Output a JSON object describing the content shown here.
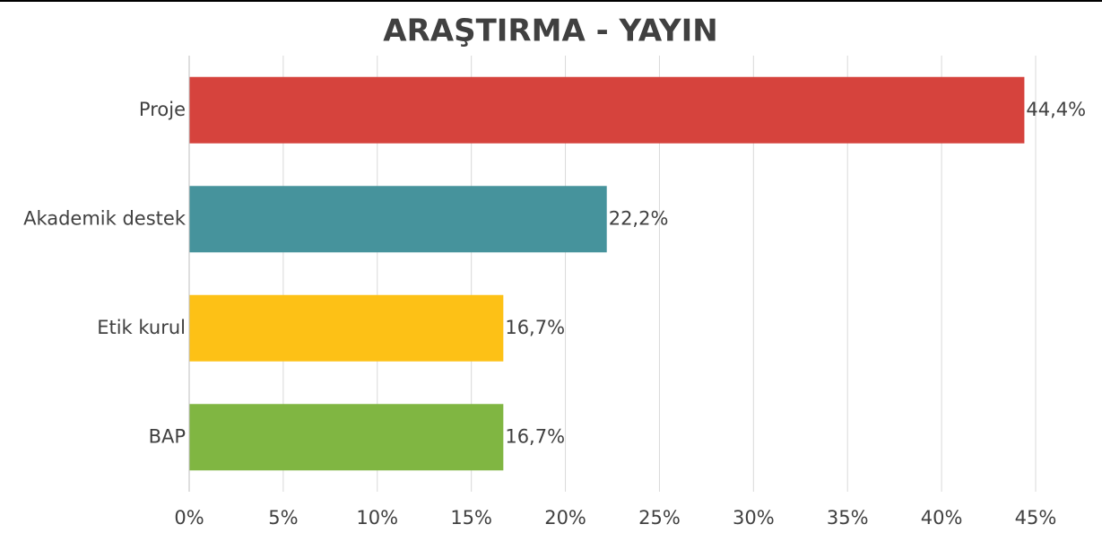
{
  "chart_data": {
    "type": "bar",
    "orientation": "horizontal",
    "title": "ARAŞTIRMA - YAYIN",
    "categories": [
      "Proje",
      "Akademik destek",
      "Etik kurul",
      "BAP"
    ],
    "values": [
      44.4,
      22.2,
      16.7,
      16.7
    ],
    "value_labels": [
      "44,4%",
      "22,2%",
      "16,7%",
      "16,7%"
    ],
    "colors": [
      "#d6433d",
      "#46939c",
      "#fdc116",
      "#80b642"
    ],
    "xlim": [
      0,
      45
    ],
    "xticks": [
      {
        "value": 0,
        "label": "0%"
      },
      {
        "value": 5,
        "label": "5%"
      },
      {
        "value": 10,
        "label": "10%"
      },
      {
        "value": 15,
        "label": "15%"
      },
      {
        "value": 20,
        "label": "20%"
      },
      {
        "value": 25,
        "label": "25%"
      },
      {
        "value": 30,
        "label": "30%"
      },
      {
        "value": 35,
        "label": "35%"
      },
      {
        "value": 40,
        "label": "40%"
      },
      {
        "value": 45,
        "label": "45%"
      }
    ],
    "grid": true
  }
}
